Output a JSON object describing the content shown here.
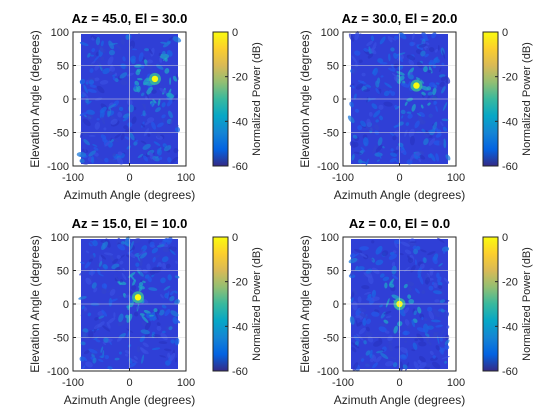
{
  "figure": {
    "background": "#ffffff"
  },
  "chart_data": [
    {
      "type": "heatmap",
      "title": "Az = 45.0, El = 30.0",
      "xlabel": "Azimuth Angle (degrees)",
      "ylabel": "Elevation Angle (degrees)",
      "xlim": [
        -100,
        100
      ],
      "ylim": [
        -100,
        100
      ],
      "xticks": [
        -100,
        0,
        100
      ],
      "yticks": [
        -100,
        -50,
        0,
        50,
        100
      ],
      "colorbar": {
        "label": "Normalized Power (dB)",
        "clim": [
          -60,
          0
        ],
        "ticks": [
          0,
          -20,
          -40,
          -60
        ]
      },
      "peak": {
        "az": 45,
        "el": 30,
        "value": 0
      },
      "colormap": "parula"
    },
    {
      "type": "heatmap",
      "title": "Az = 30.0, El = 20.0",
      "xlabel": "Azimuth Angle (degrees)",
      "ylabel": "Elevation Angle (degrees)",
      "xlim": [
        -100,
        100
      ],
      "ylim": [
        -100,
        100
      ],
      "xticks": [
        -100,
        0,
        100
      ],
      "yticks": [
        -100,
        -50,
        0,
        50,
        100
      ],
      "colorbar": {
        "label": "Normalized Power (dB)",
        "clim": [
          -60,
          0
        ],
        "ticks": [
          0,
          -20,
          -40,
          -60
        ]
      },
      "peak": {
        "az": 30,
        "el": 20,
        "value": 0
      },
      "colormap": "parula"
    },
    {
      "type": "heatmap",
      "title": "Az = 15.0, El = 10.0",
      "xlabel": "Azimuth Angle (degrees)",
      "ylabel": "Elevation Angle (degrees)",
      "xlim": [
        -100,
        100
      ],
      "ylim": [
        -100,
        100
      ],
      "xticks": [
        -100,
        0,
        100
      ],
      "yticks": [
        -100,
        -50,
        0,
        50,
        100
      ],
      "colorbar": {
        "label": "Normalized Power (dB)",
        "clim": [
          -60,
          0
        ],
        "ticks": [
          0,
          -20,
          -40,
          -60
        ]
      },
      "peak": {
        "az": 15,
        "el": 10,
        "value": 0
      },
      "colormap": "parula"
    },
    {
      "type": "heatmap",
      "title": "Az = 0.0, El = 0.0",
      "xlabel": "Azimuth Angle (degrees)",
      "ylabel": "Elevation Angle (degrees)",
      "xlim": [
        -100,
        100
      ],
      "ylim": [
        -100,
        100
      ],
      "xticks": [
        -100,
        0,
        100
      ],
      "yticks": [
        -100,
        -50,
        0,
        50,
        100
      ],
      "colorbar": {
        "label": "Normalized Power (dB)",
        "clim": [
          -60,
          0
        ],
        "ticks": [
          0,
          -20,
          -40,
          -60
        ]
      },
      "peak": {
        "az": 0,
        "el": 0,
        "value": 0
      },
      "colormap": "parula"
    }
  ]
}
